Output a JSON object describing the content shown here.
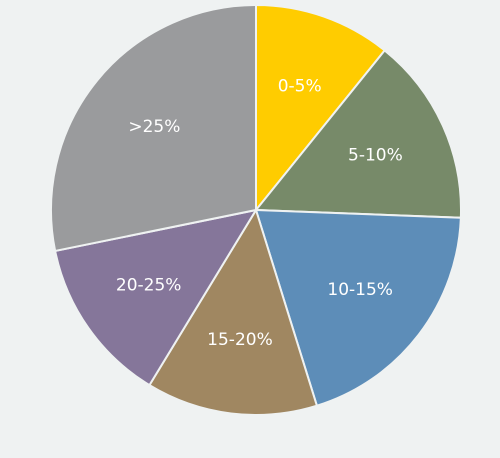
{
  "chart_data": {
    "type": "pie",
    "categories": [
      "0-5%",
      "5-10%",
      "10-15%",
      "15-20%",
      "20-25%",
      ">25%"
    ],
    "values": [
      10.8,
      14.8,
      19.6,
      13.5,
      13.1,
      28.2
    ],
    "colors": [
      "#ffcc00",
      "#778a69",
      "#5d8db8",
      "#a08761",
      "#85769a",
      "#9a9b9d"
    ]
  }
}
